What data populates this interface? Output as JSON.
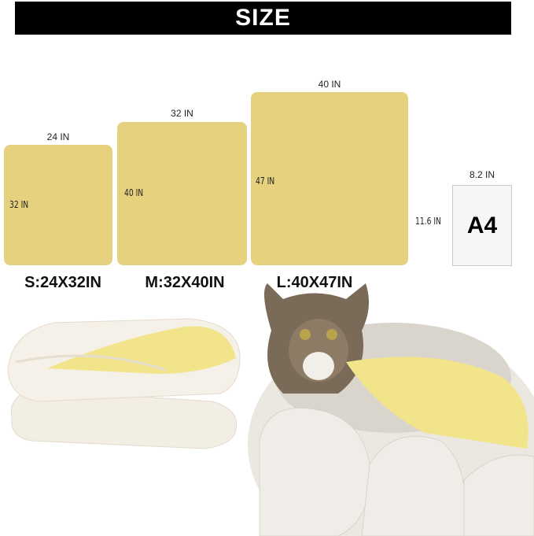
{
  "banner": {
    "title": "SIZE"
  },
  "colors": {
    "blanket": "#e6d17f",
    "banner": "#000000"
  },
  "sizes": [
    {
      "width_label": "24 IN",
      "height_label": "32 IN",
      "name": "S:24X32IN"
    },
    {
      "width_label": "32 IN",
      "height_label": "40 IN",
      "name": "M:32X40IN"
    },
    {
      "width_label": "40 IN",
      "height_label": "47 IN",
      "name": "L:40X47IN"
    }
  ],
  "a4": {
    "label": "A4",
    "width_label": "8.2 IN",
    "height_label": "11.6 IN"
  }
}
